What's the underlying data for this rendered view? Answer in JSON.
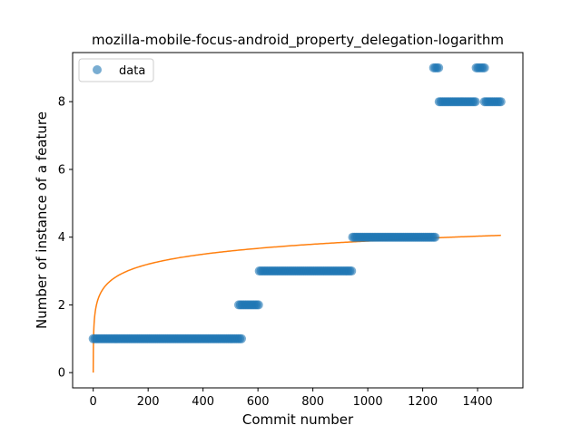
{
  "chart_data": {
    "type": "scatter",
    "title": "mozilla-mobile-focus-android_property_delegation-logarithm",
    "xlabel": "Commit number",
    "ylabel": "Number of instance of a feature",
    "xlim": [
      -75,
      1565
    ],
    "ylim": [
      -0.45,
      9.45
    ],
    "xticks": [
      0,
      200,
      400,
      600,
      800,
      1000,
      1200,
      1400
    ],
    "yticks": [
      0,
      2,
      4,
      6,
      8
    ],
    "grid": false,
    "legend": {
      "placement": "top-left",
      "entries": [
        "data"
      ]
    },
    "colors": {
      "data": "#1f77b4",
      "fit": "#ff7f0e"
    },
    "series": [
      {
        "name": "data",
        "kind": "scatter",
        "segments": [
          {
            "x_start": 0,
            "x_end": 540,
            "y": 1
          },
          {
            "x_start": 530,
            "x_end": 605,
            "y": 2
          },
          {
            "x_start": 605,
            "x_end": 945,
            "y": 3
          },
          {
            "x_start": 945,
            "x_end": 1245,
            "y": 4
          },
          {
            "x_start": 1240,
            "x_end": 1260,
            "y": 9
          },
          {
            "x_start": 1260,
            "x_end": 1395,
            "y": 8
          },
          {
            "x_start": 1395,
            "x_end": 1425,
            "y": 9
          },
          {
            "x_start": 1425,
            "x_end": 1490,
            "y": 8
          }
        ]
      },
      {
        "kind": "line",
        "model": "logarithmic",
        "a": 0.95,
        "b": 0.425,
        "x_range": [
          0,
          1485
        ]
      }
    ]
  }
}
